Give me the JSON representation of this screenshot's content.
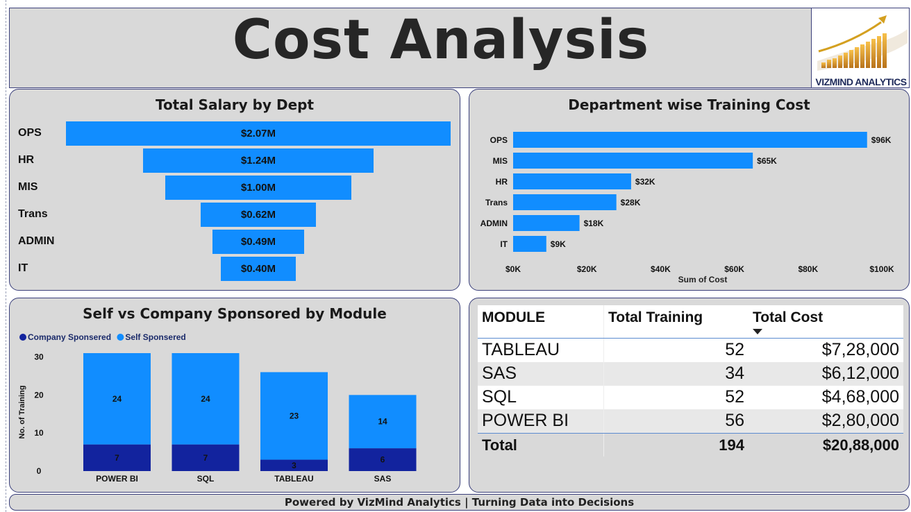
{
  "header": {
    "title": "Cost Analysis",
    "logo_text": "VIZMIND ANALYTICS"
  },
  "footer": {
    "text": "Powered by VizMind Analytics | Turning Data into Decisions"
  },
  "colors": {
    "light_blue": "#118dff",
    "dark_blue": "#12239e",
    "panel_bg": "#d9d9d9"
  },
  "chart_data": [
    {
      "id": "salary",
      "type": "bar",
      "title": "Total Salary by Dept",
      "categories": [
        "OPS",
        "HR",
        "MIS",
        "Trans",
        "ADMIN",
        "IT"
      ],
      "values": [
        2.07,
        1.24,
        1.0,
        0.62,
        0.49,
        0.4
      ],
      "value_labels": [
        "$2.07M",
        "$1.24M",
        "$1.00M",
        "$0.62M",
        "$0.49M",
        "$0.40M"
      ]
    },
    {
      "id": "training",
      "type": "bar",
      "title": "Department wise Training Cost",
      "categories": [
        "OPS",
        "MIS",
        "HR",
        "Trans",
        "ADMIN",
        "IT"
      ],
      "values": [
        96,
        65,
        32,
        28,
        18,
        9
      ],
      "value_labels": [
        "$96K",
        "$65K",
        "$32K",
        "$28K",
        "$18K",
        "$9K"
      ],
      "xlabel": "Sum of Cost",
      "xlim": [
        0,
        100
      ],
      "ticks": [
        0,
        20,
        40,
        60,
        80,
        100
      ],
      "tick_labels": [
        "$0K",
        "$20K",
        "$40K",
        "$60K",
        "$80K",
        "$100K"
      ]
    },
    {
      "id": "sponsor",
      "type": "bar",
      "stacked": true,
      "title": "Self vs Company Sponsored by Module",
      "categories": [
        "POWER BI",
        "SQL",
        "TABLEAU",
        "SAS"
      ],
      "series": [
        {
          "name": "Company Sponsered",
          "values": [
            7,
            7,
            3,
            6
          ]
        },
        {
          "name": "Self Sponsered",
          "values": [
            24,
            24,
            23,
            14
          ]
        }
      ],
      "ylabel": "No. of Training",
      "ylim": [
        0,
        31
      ],
      "ticks": [
        0,
        10,
        20,
        30
      ],
      "tick_labels": [
        "0",
        "10",
        "20",
        "30"
      ],
      "legend": "top-left"
    }
  ],
  "table": {
    "headers": [
      "MODULE",
      "Total Training",
      "Total Cost"
    ],
    "rows": [
      [
        "TABLEAU",
        "52",
        "$7,28,000"
      ],
      [
        "SAS",
        "34",
        "$6,12,000"
      ],
      [
        "SQL",
        "52",
        "$4,68,000"
      ],
      [
        "POWER BI",
        "56",
        "$2,80,000"
      ]
    ],
    "total": [
      "Total",
      "194",
      "$20,88,000"
    ]
  }
}
